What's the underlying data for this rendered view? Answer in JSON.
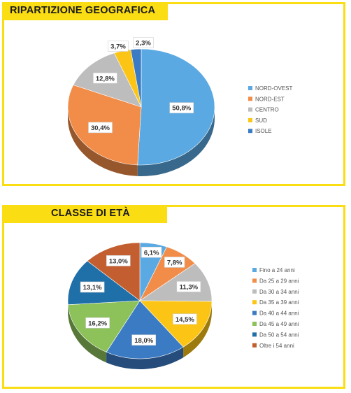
{
  "chart_data": [
    {
      "type": "pie",
      "title": "RIPARTIZIONE GEOGRAFICA",
      "categories": [
        "NORD-OVEST",
        "NORD-EST",
        "CENTRO",
        "SUD",
        "ISOLE"
      ],
      "values": [
        50.8,
        30.4,
        12.8,
        3.7,
        2.3
      ],
      "labels": [
        "50,8%",
        "30,4%",
        "12,8%",
        "3,7%",
        "2,3%"
      ],
      "colors": [
        "#5aa9e2",
        "#f28d49",
        "#bdbdbd",
        "#fcc516",
        "#3b7bc4"
      ],
      "legend_position": "right"
    },
    {
      "type": "pie",
      "title": "CLASSE DI ETÀ",
      "categories": [
        "Fino a 24 anni",
        "Da 25 a 29 anni",
        "Da 30 a 34 anni",
        "Da 35 a 39 anni",
        "Da 40 a 44 anni",
        "Da 45 a 49 anni",
        "Da 50 a 54 anni",
        "Oltre i 54 anni"
      ],
      "values": [
        6.1,
        7.8,
        11.3,
        14.5,
        18.0,
        16.2,
        13.1,
        13.0
      ],
      "labels": [
        "6,1%",
        "7,8%",
        "11,3%",
        "14,5%",
        "18,0%",
        "16,2%",
        "13,1%",
        "13,0%"
      ],
      "colors": [
        "#5aa9e2",
        "#f28d49",
        "#bdbdbd",
        "#fcc516",
        "#3b7bc4",
        "#8dc15a",
        "#1f6fa8",
        "#c25e2f"
      ],
      "legend_position": "right"
    }
  ]
}
